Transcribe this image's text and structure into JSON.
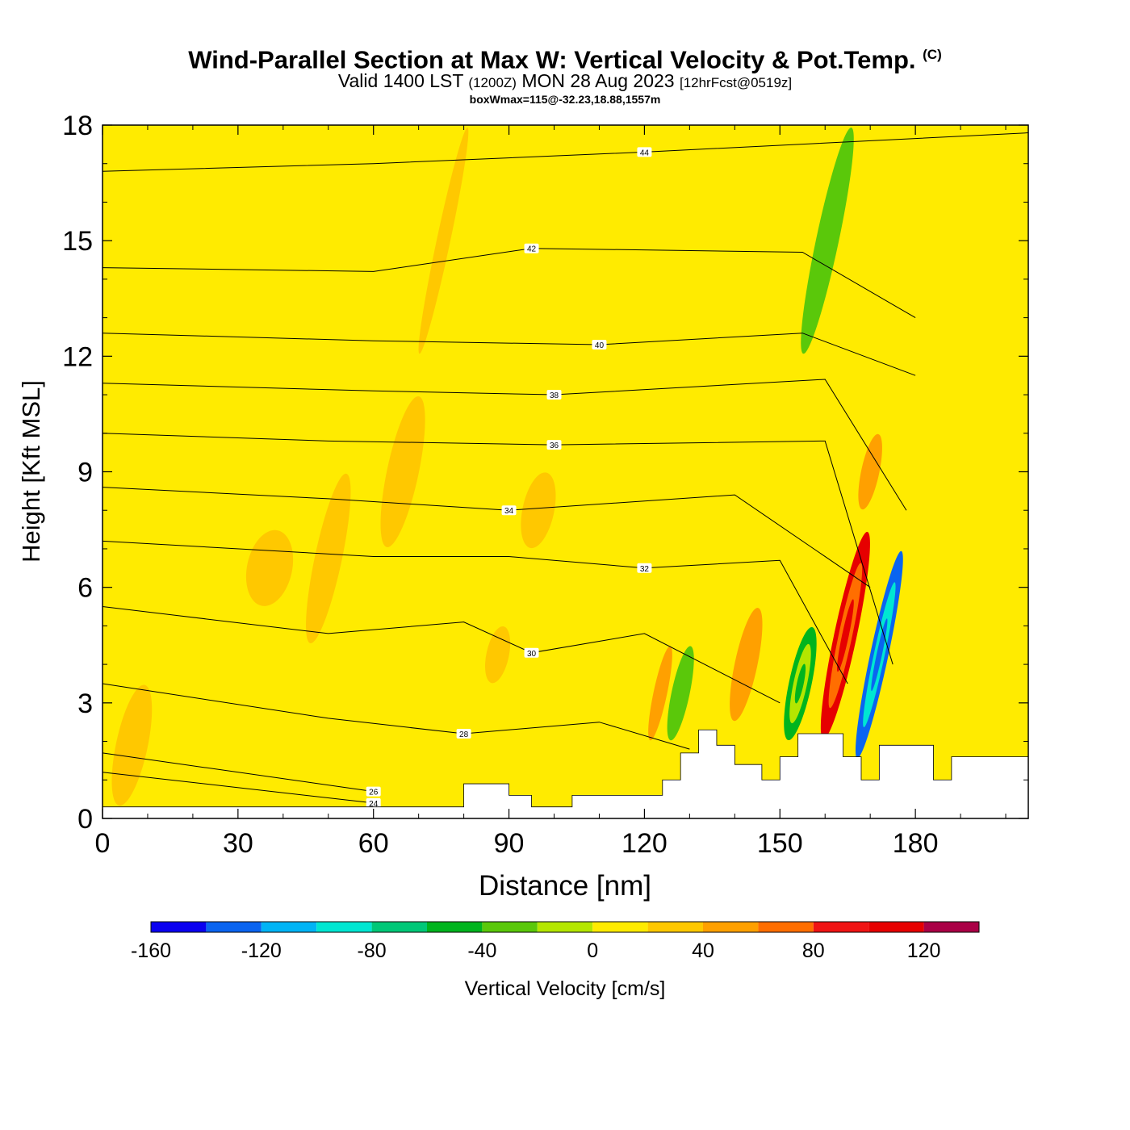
{
  "title": {
    "main": "Wind-Parallel Section at Max W: Vertical Velocity & Pot.Temp.",
    "mark": "(C)",
    "valid_prefix": "Valid 1400 LST",
    "valid_utc": "(1200Z)",
    "valid_date": "MON 28 Aug 2023",
    "forecast": "[12hrFcst@0519z]",
    "stats": "boxWmax=115@-32.23,18.88,1557m"
  },
  "chart_data": {
    "type": "heatmap",
    "xlabel": "Distance [nm]",
    "ylabel": "Height [Kft MSL]",
    "xlim": [
      0,
      205
    ],
    "ylim": [
      0,
      18
    ],
    "xticks": [
      0,
      30,
      60,
      90,
      120,
      150,
      180
    ],
    "yticks": [
      0,
      3,
      6,
      9,
      12,
      15,
      18
    ],
    "colorbar": {
      "label": "Vertical Velocity [cm/s]",
      "bounds": [
        -160,
        -140,
        -120,
        -100,
        -80,
        -60,
        -40,
        -20,
        0,
        20,
        40,
        60,
        80,
        100,
        120,
        140
      ],
      "tick_labels": [
        "-160",
        "-120",
        "-80",
        "-40",
        "0",
        "40",
        "80",
        "120"
      ],
      "colors": [
        "#0a00f0",
        "#0a64f0",
        "#00b4f5",
        "#00e6d2",
        "#00c878",
        "#00b41e",
        "#5ac80a",
        "#b4e600",
        "#ffeb00",
        "#ffc800",
        "#ffa000",
        "#ff6e00",
        "#f01414",
        "#e60000",
        "#aa0046"
      ]
    },
    "background_w_value": 10,
    "updraft_bands": [
      {
        "x": [
          3,
          10
        ],
        "y": [
          0.3,
          3.5
        ],
        "w": 20
      },
      {
        "x": [
          32,
          42
        ],
        "y": [
          5.5,
          7.5
        ],
        "w": 20
      },
      {
        "x": [
          47,
          53
        ],
        "y": [
          4.5,
          9
        ],
        "w": 20
      },
      {
        "x": [
          63,
          70
        ],
        "y": [
          7,
          11
        ],
        "w": 20
      },
      {
        "x": [
          74,
          77
        ],
        "y": [
          12,
          18
        ],
        "w": 20
      },
      {
        "x": [
          85,
          90
        ],
        "y": [
          3.5,
          5
        ],
        "w": 20
      },
      {
        "x": [
          93,
          100
        ],
        "y": [
          7,
          9
        ],
        "w": 20
      },
      {
        "x": [
          122,
          125
        ],
        "y": [
          2,
          4.5
        ],
        "w": 40
      },
      {
        "x": [
          140,
          145
        ],
        "y": [
          2.5,
          5.5
        ],
        "w": 40
      },
      {
        "x": [
          162,
          167
        ],
        "y": [
          2,
          7.5
        ],
        "w": 110
      },
      {
        "x": [
          168,
          172
        ],
        "y": [
          8,
          10
        ],
        "w": 40
      }
    ],
    "downdraft_bands": [
      {
        "x": [
          126,
          130
        ],
        "y": [
          2,
          4.5
        ],
        "w": -40
      },
      {
        "x": [
          152,
          157
        ],
        "y": [
          2,
          5
        ],
        "w": -60
      },
      {
        "x": [
          170,
          174
        ],
        "y": [
          1.5,
          7
        ],
        "w": -130
      },
      {
        "x": [
          158,
          163
        ],
        "y": [
          12,
          18
        ],
        "w": -40
      }
    ],
    "isentrope_labels": [
      "24",
      "26",
      "28",
      "30",
      "32",
      "34",
      "36",
      "38",
      "40",
      "42",
      "44"
    ],
    "theta_contours": [
      {
        "label": "24",
        "points": [
          [
            0,
            1.2
          ],
          [
            60,
            0.4
          ]
        ]
      },
      {
        "label": "26",
        "points": [
          [
            0,
            1.7
          ],
          [
            60,
            0.7
          ]
        ]
      },
      {
        "label": "28",
        "points": [
          [
            0,
            3.5
          ],
          [
            50,
            2.6
          ],
          [
            80,
            2.2
          ],
          [
            110,
            2.5
          ],
          [
            130,
            1.8
          ]
        ]
      },
      {
        "label": "30",
        "points": [
          [
            0,
            5.5
          ],
          [
            50,
            4.8
          ],
          [
            80,
            5.1
          ],
          [
            95,
            4.3
          ],
          [
            120,
            4.8
          ],
          [
            150,
            3.0
          ]
        ]
      },
      {
        "label": "32",
        "points": [
          [
            0,
            7.2
          ],
          [
            60,
            6.8
          ],
          [
            90,
            6.8
          ],
          [
            120,
            6.5
          ],
          [
            150,
            6.7
          ],
          [
            165,
            3.5
          ]
        ]
      },
      {
        "label": "34",
        "points": [
          [
            0,
            8.6
          ],
          [
            50,
            8.3
          ],
          [
            90,
            8.0
          ],
          [
            140,
            8.4
          ],
          [
            170,
            6.0
          ]
        ]
      },
      {
        "label": "36",
        "points": [
          [
            0,
            10.0
          ],
          [
            50,
            9.8
          ],
          [
            100,
            9.7
          ],
          [
            160,
            9.8
          ],
          [
            175,
            4.0
          ]
        ]
      },
      {
        "label": "38",
        "points": [
          [
            0,
            11.3
          ],
          [
            60,
            11.1
          ],
          [
            100,
            11.0
          ],
          [
            160,
            11.4
          ],
          [
            178,
            8.0
          ]
        ]
      },
      {
        "label": "40",
        "points": [
          [
            0,
            12.6
          ],
          [
            60,
            12.4
          ],
          [
            110,
            12.3
          ],
          [
            155,
            12.6
          ],
          [
            180,
            11.5
          ]
        ]
      },
      {
        "label": "42",
        "points": [
          [
            0,
            14.3
          ],
          [
            60,
            14.2
          ],
          [
            95,
            14.8
          ],
          [
            155,
            14.7
          ],
          [
            180,
            13.0
          ]
        ]
      },
      {
        "label": "44",
        "points": [
          [
            0,
            16.8
          ],
          [
            60,
            17.0
          ],
          [
            120,
            17.3
          ],
          [
            205,
            17.8
          ]
        ]
      }
    ],
    "terrain_steps": [
      [
        0,
        0.3
      ],
      [
        80,
        0.9
      ],
      [
        86,
        0.9
      ],
      [
        90,
        0.6
      ],
      [
        95,
        0.3
      ],
      [
        104,
        0.6
      ],
      [
        120,
        0.6
      ],
      [
        124,
        1.0
      ],
      [
        128,
        1.7
      ],
      [
        132,
        2.3
      ],
      [
        136,
        1.9
      ],
      [
        140,
        1.4
      ],
      [
        146,
        1.0
      ],
      [
        150,
        1.6
      ],
      [
        154,
        2.2
      ],
      [
        160,
        2.2
      ],
      [
        164,
        1.6
      ],
      [
        168,
        1.0
      ],
      [
        172,
        1.9
      ],
      [
        180,
        1.9
      ],
      [
        184,
        1.0
      ],
      [
        188,
        1.6
      ],
      [
        205,
        1.9
      ]
    ]
  }
}
